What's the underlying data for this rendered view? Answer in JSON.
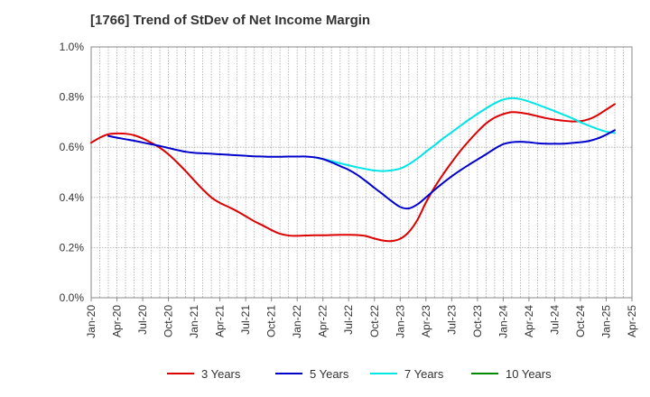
{
  "chart_data": {
    "type": "line",
    "title": "[1766]  Trend of StDev of Net Income Margin",
    "xlabel": "",
    "ylabel": "",
    "ylim": [
      0,
      1.0
    ],
    "yticks": [
      "0.0%",
      "0.2%",
      "0.4%",
      "0.6%",
      "0.8%",
      "1.0%"
    ],
    "xticks": [
      "Jan-20",
      "Apr-20",
      "Jul-20",
      "Oct-20",
      "Jan-21",
      "Apr-21",
      "Jul-21",
      "Oct-21",
      "Jan-22",
      "Apr-22",
      "Jul-22",
      "Oct-22",
      "Jan-23",
      "Apr-23",
      "Jul-23",
      "Oct-23",
      "Jan-24",
      "Apr-24",
      "Jul-24",
      "Oct-24",
      "Jan-25",
      "Apr-25"
    ],
    "grid": true,
    "legend_position": "bottom",
    "series": [
      {
        "name": "3 Years",
        "color": "#dd0000",
        "points": [
          [
            "Jan-20",
            0.618
          ],
          [
            "Feb-20",
            0.638
          ],
          [
            "Mar-20",
            0.652
          ],
          [
            "Apr-20",
            0.655
          ],
          [
            "May-20",
            0.654
          ],
          [
            "Jun-20",
            0.648
          ],
          [
            "Jul-20",
            0.635
          ],
          [
            "Aug-20",
            0.618
          ],
          [
            "Sep-20",
            0.598
          ],
          [
            "Oct-20",
            0.572
          ],
          [
            "Nov-20",
            0.54
          ],
          [
            "Dec-20",
            0.505
          ],
          [
            "Jan-21",
            0.468
          ],
          [
            "Feb-21",
            0.432
          ],
          [
            "Mar-21",
            0.4
          ],
          [
            "Apr-21",
            0.378
          ],
          [
            "May-21",
            0.362
          ],
          [
            "Jun-21",
            0.345
          ],
          [
            "Jul-21",
            0.325
          ],
          [
            "Aug-21",
            0.305
          ],
          [
            "Sep-21",
            0.288
          ],
          [
            "Oct-21",
            0.27
          ],
          [
            "Nov-21",
            0.255
          ],
          [
            "Dec-21",
            0.248
          ],
          [
            "Jan-22",
            0.247
          ],
          [
            "Feb-22",
            0.248
          ],
          [
            "Mar-22",
            0.249
          ],
          [
            "Apr-22",
            0.249
          ],
          [
            "May-22",
            0.25
          ],
          [
            "Jun-22",
            0.251
          ],
          [
            "Jul-22",
            0.251
          ],
          [
            "Aug-22",
            0.25
          ],
          [
            "Sep-22",
            0.246
          ],
          [
            "Oct-22",
            0.236
          ],
          [
            "Nov-22",
            0.228
          ],
          [
            "Dec-22",
            0.226
          ],
          [
            "Jan-23",
            0.235
          ],
          [
            "Feb-23",
            0.262
          ],
          [
            "Mar-23",
            0.31
          ],
          [
            "Apr-23",
            0.38
          ],
          [
            "May-23",
            0.44
          ],
          [
            "Jun-23",
            0.492
          ],
          [
            "Jul-23",
            0.54
          ],
          [
            "Aug-23",
            0.585
          ],
          [
            "Sep-23",
            0.625
          ],
          [
            "Oct-23",
            0.662
          ],
          [
            "Nov-23",
            0.695
          ],
          [
            "Dec-23",
            0.718
          ],
          [
            "Jan-24",
            0.732
          ],
          [
            "Feb-24",
            0.74
          ],
          [
            "Mar-24",
            0.738
          ],
          [
            "Apr-24",
            0.732
          ],
          [
            "May-24",
            0.724
          ],
          [
            "Jun-24",
            0.716
          ],
          [
            "Jul-24",
            0.71
          ],
          [
            "Aug-24",
            0.706
          ],
          [
            "Sep-24",
            0.703
          ],
          [
            "Oct-24",
            0.704
          ],
          [
            "Nov-24",
            0.712
          ],
          [
            "Dec-24",
            0.728
          ],
          [
            "Jan-25",
            0.75
          ],
          [
            "Feb-25",
            0.772
          ]
        ]
      },
      {
        "name": "5 Years",
        "color": "#0000cc",
        "points": [
          [
            "Mar-20",
            0.645
          ],
          [
            "Apr-20",
            0.638
          ],
          [
            "May-20",
            0.632
          ],
          [
            "Jun-20",
            0.626
          ],
          [
            "Jul-20",
            0.619
          ],
          [
            "Aug-20",
            0.612
          ],
          [
            "Sep-20",
            0.605
          ],
          [
            "Oct-20",
            0.597
          ],
          [
            "Nov-20",
            0.589
          ],
          [
            "Dec-20",
            0.582
          ],
          [
            "Jan-21",
            0.578
          ],
          [
            "Feb-21",
            0.576
          ],
          [
            "Mar-21",
            0.574
          ],
          [
            "Apr-21",
            0.572
          ],
          [
            "May-21",
            0.57
          ],
          [
            "Jun-21",
            0.568
          ],
          [
            "Jul-21",
            0.566
          ],
          [
            "Aug-21",
            0.564
          ],
          [
            "Sep-21",
            0.563
          ],
          [
            "Oct-21",
            0.562
          ],
          [
            "Nov-21",
            0.562
          ],
          [
            "Dec-21",
            0.563
          ],
          [
            "Jan-22",
            0.563
          ],
          [
            "Feb-22",
            0.563
          ],
          [
            "Mar-22",
            0.56
          ],
          [
            "Apr-22",
            0.553
          ],
          [
            "May-22",
            0.54
          ],
          [
            "Jun-22",
            0.525
          ],
          [
            "Jul-22",
            0.51
          ],
          [
            "Aug-22",
            0.49
          ],
          [
            "Sep-22",
            0.465
          ],
          [
            "Oct-22",
            0.438
          ],
          [
            "Nov-22",
            0.412
          ],
          [
            "Dec-22",
            0.385
          ],
          [
            "Jan-23",
            0.362
          ],
          [
            "Feb-23",
            0.356
          ],
          [
            "Mar-23",
            0.372
          ],
          [
            "Apr-23",
            0.4
          ],
          [
            "May-23",
            0.43
          ],
          [
            "Jun-23",
            0.458
          ],
          [
            "Jul-23",
            0.484
          ],
          [
            "Aug-23",
            0.508
          ],
          [
            "Sep-23",
            0.53
          ],
          [
            "Oct-23",
            0.551
          ],
          [
            "Nov-23",
            0.572
          ],
          [
            "Dec-23",
            0.594
          ],
          [
            "Jan-24",
            0.612
          ],
          [
            "Feb-24",
            0.62
          ],
          [
            "Mar-24",
            0.622
          ],
          [
            "Apr-24",
            0.62
          ],
          [
            "May-24",
            0.616
          ],
          [
            "Jun-24",
            0.614
          ],
          [
            "Jul-24",
            0.614
          ],
          [
            "Aug-24",
            0.614
          ],
          [
            "Sep-24",
            0.617
          ],
          [
            "Oct-24",
            0.62
          ],
          [
            "Nov-24",
            0.625
          ],
          [
            "Dec-24",
            0.635
          ],
          [
            "Jan-25",
            0.65
          ],
          [
            "Feb-25",
            0.668
          ]
        ]
      },
      {
        "name": "7 Years",
        "color": "#00e5e5",
        "points": [
          [
            "Mar-22",
            0.56
          ],
          [
            "Apr-22",
            0.553
          ],
          [
            "May-22",
            0.545
          ],
          [
            "Jun-22",
            0.536
          ],
          [
            "Jul-22",
            0.528
          ],
          [
            "Aug-22",
            0.52
          ],
          [
            "Sep-22",
            0.513
          ],
          [
            "Oct-22",
            0.507
          ],
          [
            "Nov-22",
            0.505
          ],
          [
            "Dec-22",
            0.508
          ],
          [
            "Jan-23",
            0.515
          ],
          [
            "Feb-23",
            0.532
          ],
          [
            "Mar-23",
            0.555
          ],
          [
            "Apr-23",
            0.582
          ],
          [
            "May-23",
            0.608
          ],
          [
            "Jun-23",
            0.635
          ],
          [
            "Jul-23",
            0.66
          ],
          [
            "Aug-23",
            0.685
          ],
          [
            "Sep-23",
            0.71
          ],
          [
            "Oct-23",
            0.733
          ],
          [
            "Nov-23",
            0.755
          ],
          [
            "Dec-23",
            0.775
          ],
          [
            "Jan-24",
            0.79
          ],
          [
            "Feb-24",
            0.796
          ],
          [
            "Mar-24",
            0.792
          ],
          [
            "Apr-24",
            0.782
          ],
          [
            "May-24",
            0.77
          ],
          [
            "Jun-24",
            0.757
          ],
          [
            "Jul-24",
            0.744
          ],
          [
            "Aug-24",
            0.73
          ],
          [
            "Sep-24",
            0.716
          ],
          [
            "Oct-24",
            0.7
          ],
          [
            "Nov-24",
            0.686
          ],
          [
            "Dec-24",
            0.673
          ],
          [
            "Jan-25",
            0.662
          ],
          [
            "Feb-25",
            0.657
          ]
        ]
      },
      {
        "name": "10 Years",
        "color": "#008800",
        "points": []
      }
    ]
  }
}
